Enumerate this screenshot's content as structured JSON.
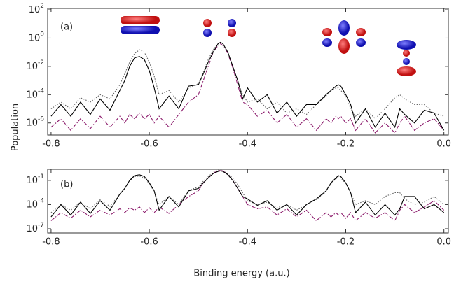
{
  "chart_data": [
    {
      "type": "line",
      "label": "(a)",
      "ylabel": "Population",
      "log_y": true,
      "xlim": [
        -0.807,
        0.009
      ],
      "ylim": [
        1.4e-07,
        126
      ],
      "xticks": [
        -0.8,
        -0.6,
        -0.4,
        -0.2,
        {
          "value": 0,
          "label": "0.0"
        }
      ],
      "yticks": [
        {
          "value": 100,
          "label": "10^2"
        },
        {
          "value": 1,
          "label": "10^0"
        },
        {
          "value": 0.01,
          "label": "10^-2"
        },
        {
          "value": 0.0001,
          "label": "10^-4"
        },
        {
          "value": 1e-06,
          "label": "10^-6"
        }
      ],
      "x": [
        -0.8,
        -0.78,
        -0.76,
        -0.74,
        -0.72,
        -0.7,
        -0.68,
        -0.66,
        -0.65,
        -0.64,
        -0.63,
        -0.62,
        -0.61,
        -0.6,
        -0.59,
        -0.58,
        -0.56,
        -0.54,
        -0.52,
        -0.5,
        -0.49,
        -0.48,
        -0.47,
        -0.46,
        -0.455,
        -0.45,
        -0.44,
        -0.43,
        -0.42,
        -0.41,
        -0.4,
        -0.38,
        -0.36,
        -0.34,
        -0.32,
        -0.3,
        -0.28,
        -0.26,
        -0.24,
        -0.23,
        -0.22,
        -0.215,
        -0.21,
        -0.2,
        -0.19,
        -0.18,
        -0.16,
        -0.14,
        -0.12,
        -0.1,
        -0.09,
        -0.08,
        -0.06,
        -0.04,
        -0.02,
        0.0
      ],
      "series": [
        {
          "color": "#666666",
          "style": "dotted",
          "values": [
            1e-05,
            3e-05,
            1e-05,
            6e-05,
            3e-05,
            0.0001,
            5e-05,
            0.0005,
            0.003,
            0.02,
            0.08,
            0.15,
            0.1,
            0.02,
            0.002,
            0.0001,
            0.0002,
            3e-05,
            0.0003,
            0.0006,
            0.004,
            0.03,
            0.15,
            0.4,
            0.5,
            0.4,
            0.1,
            0.01,
            0.001,
            0.0001,
            3e-05,
            5e-05,
            1e-05,
            3e-05,
            5e-06,
            1e-05,
            4e-06,
            2e-05,
            8e-05,
            0.0002,
            0.0003,
            0.0003,
            0.0002,
            8e-05,
            1e-05,
            3e-06,
            1e-05,
            2e-06,
            1e-05,
            6e-05,
            0.0001,
            5e-05,
            2e-05,
            2e-05,
            5e-06,
            3e-06
          ]
        },
        {
          "color": "#8b1a6b",
          "style": "dashdot",
          "values": [
            5e-07,
            2e-06,
            3e-07,
            2e-06,
            4e-07,
            3e-06,
            5e-07,
            3e-06,
            1e-06,
            4e-06,
            2e-06,
            5e-06,
            2e-06,
            4e-06,
            1e-06,
            3e-06,
            5e-07,
            4e-06,
            3e-05,
            0.0001,
            0.001,
            0.01,
            0.1,
            0.3,
            0.4,
            0.3,
            0.08,
            0.008,
            0.0005,
            3e-05,
            2e-05,
            3e-06,
            8e-06,
            1e-06,
            4e-06,
            5e-07,
            2e-06,
            3e-07,
            2e-06,
            1e-06,
            3e-06,
            2e-06,
            3e-06,
            1e-06,
            2e-06,
            3e-07,
            2e-06,
            2e-07,
            1e-06,
            2e-07,
            1e-06,
            3e-06,
            3e-07,
            1e-06,
            2e-06,
            3e-07
          ]
        },
        {
          "color": "#000000",
          "style": "solid",
          "values": [
            3e-06,
            2e-05,
            3e-06,
            3e-05,
            4e-06,
            5e-05,
            8e-06,
            0.0002,
            0.001,
            0.01,
            0.04,
            0.05,
            0.03,
            0.005,
            0.0003,
            1e-05,
            8e-05,
            1e-05,
            0.0004,
            0.0005,
            0.003,
            0.02,
            0.1,
            0.4,
            0.5,
            0.4,
            0.1,
            0.01,
            0.001,
            5e-05,
            0.0003,
            3e-05,
            0.0001,
            5e-06,
            3e-05,
            3e-06,
            2e-05,
            2e-05,
            0.0001,
            0.0002,
            0.0004,
            0.0005,
            0.0004,
            0.0001,
            2e-05,
            1e-06,
            1e-05,
            5e-07,
            5e-06,
            5e-07,
            1e-05,
            4e-06,
            1e-06,
            8e-06,
            5e-06,
            3e-07
          ]
        }
      ]
    },
    {
      "type": "line",
      "label": "(b)",
      "xlabel": "Binding energy (a.u.)",
      "log_y": true,
      "xlim": [
        -0.807,
        0.009
      ],
      "ylim": [
        3e-08,
        2.4
      ],
      "xticks": [
        -0.8,
        -0.6,
        -0.4,
        -0.2,
        {
          "value": 0,
          "label": "0.0"
        }
      ],
      "yticks": [
        {
          "value": 0.1,
          "label": "10^-1"
        },
        {
          "value": 0.0001,
          "label": "10^-4"
        },
        {
          "value": 1e-07,
          "label": "10^-7"
        }
      ],
      "x": [
        -0.8,
        -0.78,
        -0.76,
        -0.74,
        -0.72,
        -0.7,
        -0.68,
        -0.66,
        -0.65,
        -0.64,
        -0.63,
        -0.62,
        -0.61,
        -0.6,
        -0.59,
        -0.58,
        -0.56,
        -0.54,
        -0.52,
        -0.5,
        -0.49,
        -0.48,
        -0.47,
        -0.46,
        -0.455,
        -0.45,
        -0.44,
        -0.43,
        -0.42,
        -0.41,
        -0.4,
        -0.38,
        -0.36,
        -0.34,
        -0.32,
        -0.3,
        -0.28,
        -0.26,
        -0.24,
        -0.23,
        -0.22,
        -0.215,
        -0.21,
        -0.2,
        -0.19,
        -0.18,
        -0.16,
        -0.14,
        -0.12,
        -0.1,
        -0.09,
        -0.08,
        -0.06,
        -0.04,
        -0.02,
        0.0
      ],
      "series": [
        {
          "color": "#666666",
          "style": "dotted",
          "values": [
            1e-05,
            0.0001,
            2e-05,
            0.0002,
            3e-05,
            0.0004,
            6e-05,
            0.002,
            0.01,
            0.08,
            0.3,
            0.35,
            0.2,
            0.04,
            0.004,
            0.0001,
            0.001,
            0.0001,
            0.006,
            0.015,
            0.08,
            0.3,
            1,
            1.8,
            2,
            1.6,
            0.6,
            0.2,
            0.03,
            0.003,
            0.0003,
            0.0001,
            0.0002,
            4e-05,
            0.0001,
            2e-05,
            0.0001,
            0.0004,
            0.004,
            0.04,
            0.15,
            0.3,
            0.2,
            0.04,
            0.003,
            0.0001,
            0.0003,
            0.0001,
            0.001,
            0.003,
            0.003,
            0.0005,
            0.0001,
            0.0002,
            0.001,
            0.0001
          ]
        },
        {
          "color": "#8b1a6b",
          "style": "dashdot",
          "values": [
            1e-06,
            1e-05,
            2e-06,
            2e-05,
            3e-06,
            2e-05,
            5e-06,
            3e-05,
            1e-05,
            4e-05,
            2e-05,
            5e-05,
            1e-05,
            4e-05,
            1e-05,
            5e-05,
            8e-06,
            0.0001,
            0.001,
            0.005,
            0.05,
            0.2,
            0.8,
            1.5,
            1.8,
            1.5,
            0.5,
            0.1,
            0.01,
            0.001,
            0.0001,
            3e-05,
            5e-05,
            5e-06,
            3e-05,
            3e-06,
            2e-05,
            1e-06,
            1e-05,
            3e-06,
            1e-05,
            5e-06,
            1e-05,
            2e-06,
            1e-05,
            1e-06,
            1e-05,
            2e-06,
            1e-05,
            1e-06,
            2e-05,
            0.0001,
            1e-05,
            5e-05,
            0.0003,
            2e-05
          ]
        },
        {
          "color": "#000000",
          "style": "solid",
          "values": [
            3e-06,
            0.0001,
            5e-06,
            0.0002,
            8e-06,
            0.0003,
            2e-05,
            0.002,
            0.01,
            0.1,
            0.4,
            0.5,
            0.3,
            0.05,
            0.005,
            2e-05,
            0.001,
            5e-05,
            0.005,
            0.01,
            0.05,
            0.2,
            0.7,
            1.3,
            1.5,
            1.3,
            0.5,
            0.1,
            0.01,
            0.001,
            0.0005,
            8e-05,
            0.0003,
            2e-05,
            0.0001,
            5e-06,
            0.0001,
            0.0005,
            0.005,
            0.05,
            0.2,
            0.4,
            0.3,
            0.05,
            0.003,
            1e-05,
            0.0002,
            5e-06,
            0.0001,
            5e-06,
            3e-05,
            0.001,
            0.001,
            3e-05,
            0.0001,
            1e-05
          ]
        }
      ]
    }
  ]
}
